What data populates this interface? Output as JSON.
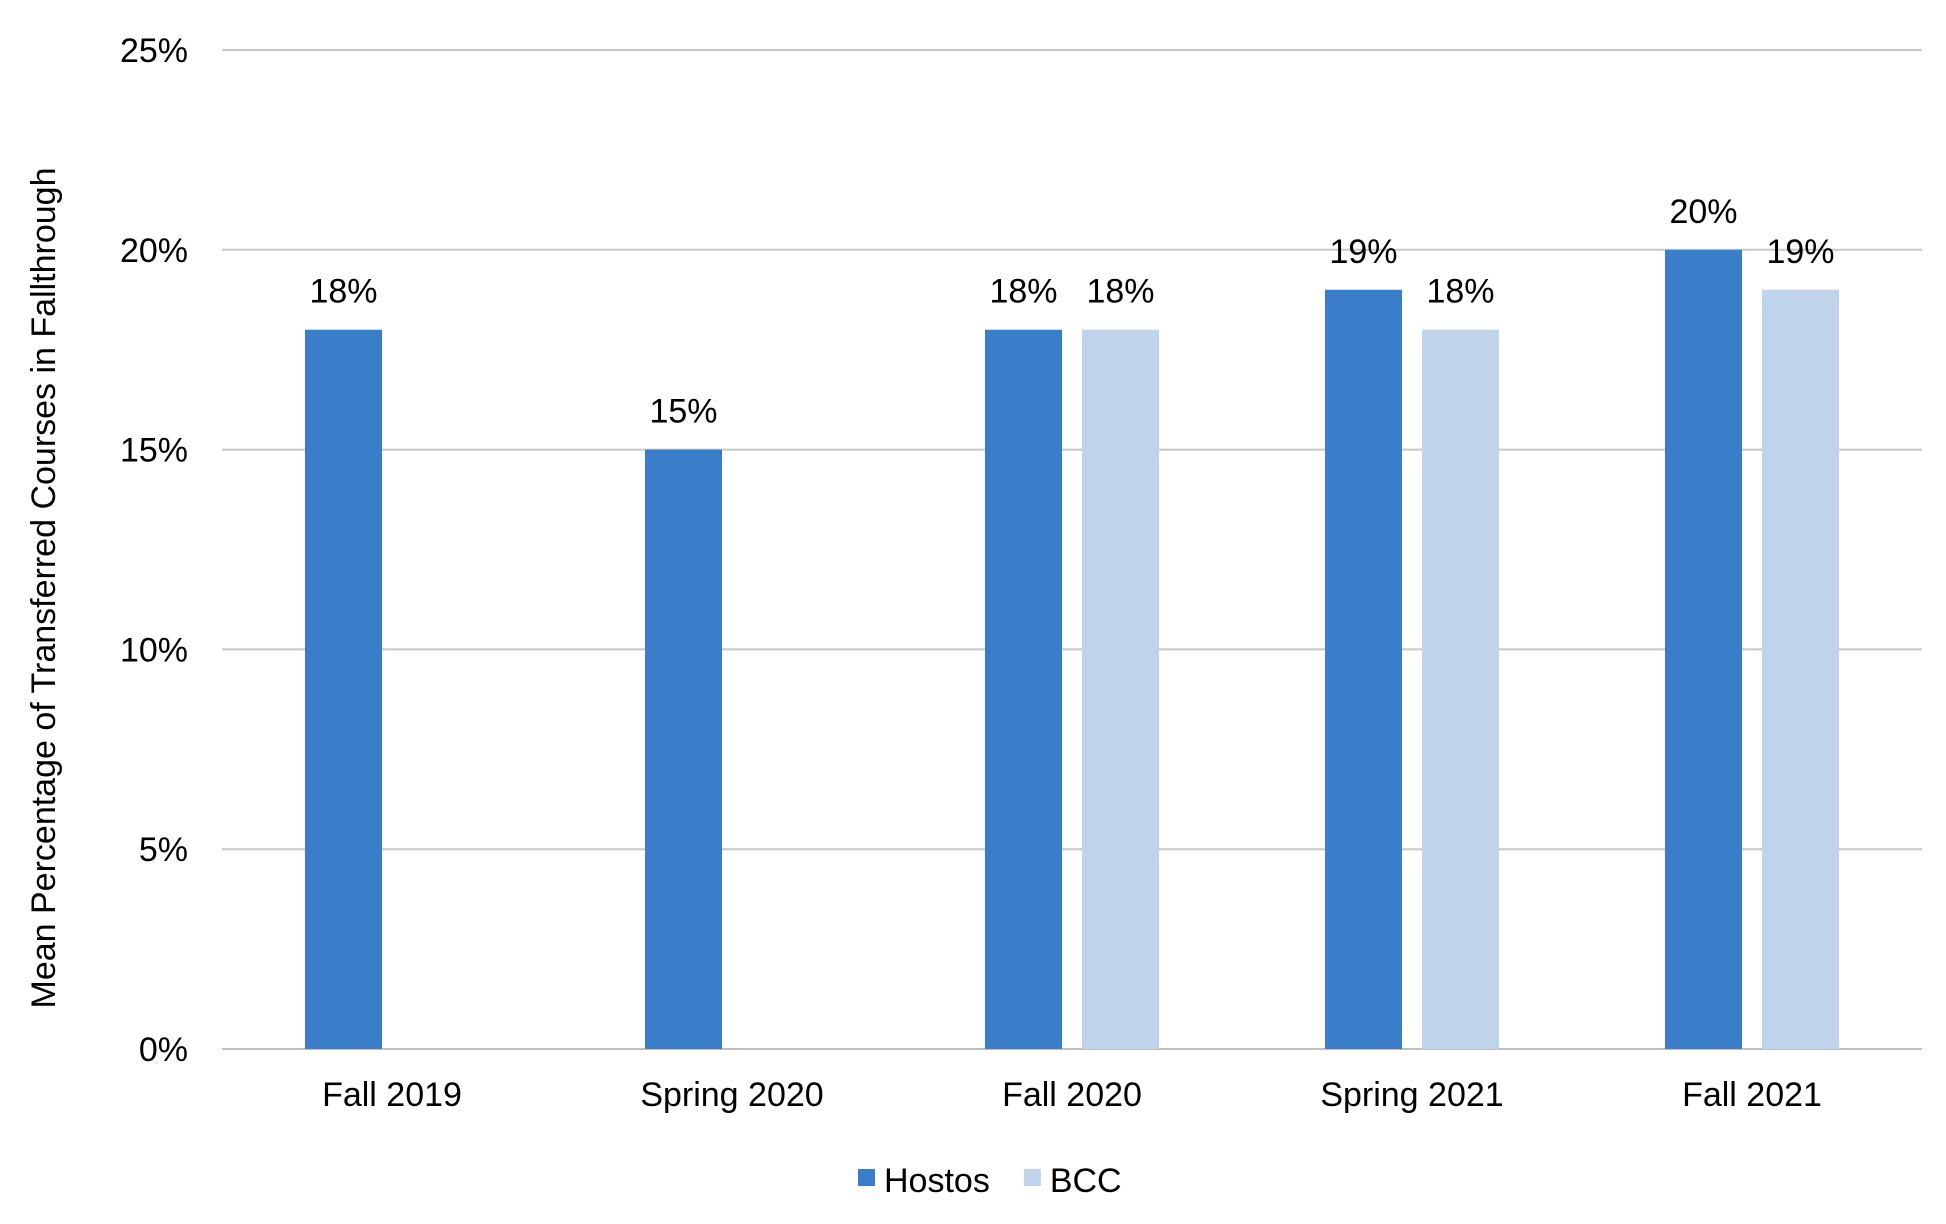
{
  "chart_data": {
    "type": "bar",
    "title": "",
    "xlabel": "",
    "ylabel": "Mean Percentage of Transferred Courses in Fallthrough",
    "categories": [
      "Fall 2019",
      "Spring 2020",
      "Fall 2020",
      "Spring 2021",
      "Fall 2021"
    ],
    "series": [
      {
        "name": "Hostos",
        "color": "#3a7dc9",
        "values": [
          18,
          15,
          18,
          19,
          20
        ]
      },
      {
        "name": "BCC",
        "color": "#bfd3ea",
        "values": [
          null,
          null,
          18,
          18,
          19
        ]
      }
    ],
    "ylim": [
      0,
      25
    ],
    "yticks": [
      0,
      5,
      10,
      15,
      20,
      25
    ],
    "tick_format": "%",
    "grid": true,
    "legend_position": "bottom"
  }
}
